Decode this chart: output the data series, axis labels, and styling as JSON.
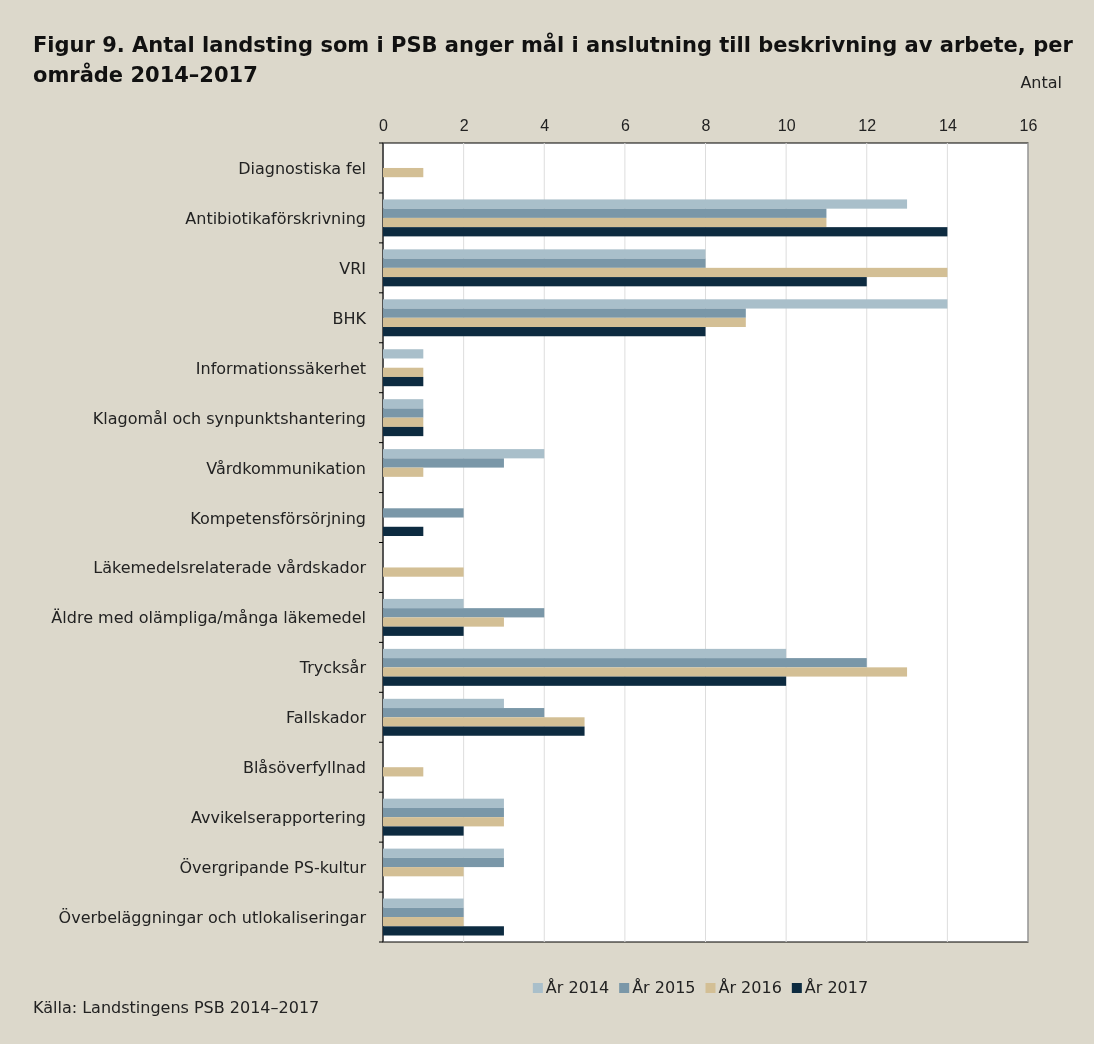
{
  "chart_data": {
    "type": "bar",
    "orientation": "horizontal",
    "title": "Figur 9. Antal landsting som i PSB anger mål i anslutning till beskrivning av arbete, per område 2014–2017",
    "xlabel": "Antal",
    "categories": [
      "Diagnostiska fel",
      "Antibiotikaförskrivning",
      "VRI",
      "BHK",
      "Informationssäkerhet",
      "Klagomål och synpunktshantering",
      "Vårdkommunikation",
      "Kompetensförsörjning",
      "Läkemedelsrelaterade vårdskador",
      "Äldre med olämpliga/många läkemedel",
      "Trycksår",
      "Fallskador",
      "Blåsöverfyllnad",
      "Avvikelserapportering",
      "Övergripande PS-kultur",
      "Överbeläggningar och utlokaliseringar"
    ],
    "series": [
      {
        "name": "År 2014",
        "color": "#a9bfca",
        "values": [
          null,
          13,
          8,
          14,
          1,
          1,
          4,
          null,
          null,
          2,
          10,
          3,
          null,
          3,
          3,
          2
        ]
      },
      {
        "name": "År 2015",
        "color": "#7a97a8",
        "values": [
          null,
          11,
          8,
          9,
          null,
          1,
          3,
          2,
          null,
          4,
          12,
          4,
          null,
          3,
          3,
          2
        ]
      },
      {
        "name": "År 2016",
        "color": "#d3bf95",
        "values": [
          1,
          11,
          14,
          9,
          1,
          1,
          1,
          null,
          2,
          3,
          13,
          5,
          1,
          3,
          2,
          2
        ]
      },
      {
        "name": "År 2017",
        "color": "#0d2b40",
        "values": [
          null,
          14,
          12,
          8,
          1,
          1,
          null,
          1,
          null,
          2,
          10,
          5,
          null,
          2,
          null,
          3
        ]
      }
    ],
    "xlim": [
      0,
      16
    ],
    "xticks": [
      0,
      2,
      4,
      6,
      8,
      10,
      12,
      14,
      16
    ],
    "grid": "x",
    "legend": "bottom",
    "annotations": [
      "Källa: Landstingens PSB 2014–2017"
    ]
  }
}
